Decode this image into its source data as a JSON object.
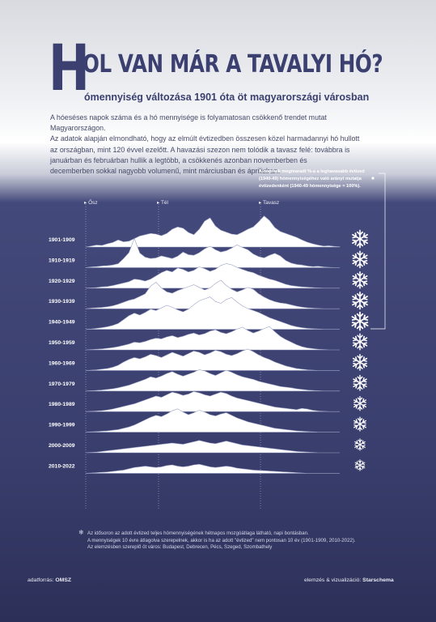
{
  "header": {
    "title_first_letter": "H",
    "title_rest": "OL VAN MÁR A TAVALYI HÓ?",
    "subtitle": "ómennyiség változása 1901 óta öt magyarországi városban"
  },
  "intro": [
    "A hóeséses napok száma és a hó mennyisége is folyamatosan csökkenő trendet mutat Magyarországon.",
    "Az adatok alapján elmondható, hogy az elmúlt évtizedben összesen közel harmadannyi hó hullott",
    "az országban, mint 120 évvel ezelőtt. A havazási szezon nem tolódik a tavasz felé: továbbra is",
    "januárban és februárban hullik a legtöbb, a csökkenés azonban novemberben és",
    "decemberben sokkal nagyobb volumenű, mint márciusban és áprilisban."
  ],
  "legend_note": {
    "lines": [
      "A hópihék megmaradt %-a a leghavasabb évtized",
      "(1940-49) hómennyiségéhez való arányt mutatja",
      "évtizedenként  (1940-49 hómennyisége = 100%)."
    ]
  },
  "footnote": {
    "lines": [
      "Az idősoron az adott évtized teljes hómennyiségének hétnapos mozgóátlaga látható, napi bontásban.",
      "A mennyiségek 10 évre átlagolva szerepelnek, akkor is ha az adott \"évtized\" nem pontosan 10 év (1901-1909, 2010-2022).",
      "Az elemzésben szereplő öt város: Budapest, Debrecen, Pécs, Szeged, Szombathely"
    ]
  },
  "credits": {
    "source_label": "adatforrás:",
    "source": "OMSZ",
    "author_label": "elemzés & vizualizáció:",
    "author": "Starschema"
  },
  "colors": {
    "background_dark": "#393e6d",
    "title": "#3b4070",
    "snow": "#ffffff",
    "text_light": "#e9eaf2"
  },
  "chart_data": {
    "type": "area",
    "description_note": "ridgeline of 7-day moving average daily snow amount per decade; season axis from autumn to spring",
    "season_markers": [
      "Ősz",
      "Tél",
      "Tavasz"
    ],
    "decades": [
      {
        "label": "1901-1909",
        "snow_share_of_max": 0.93,
        "profile": [
          0,
          0.03,
          0.06,
          0.05,
          0.1,
          0.14,
          0.22,
          0.16,
          0.18,
          0.26,
          0.34,
          0.38,
          0.42,
          0.4,
          0.35,
          0.42,
          0.55,
          0.62,
          0.58,
          0.45,
          0.38,
          0.55,
          0.8,
          0.9,
          0.65,
          0.52,
          0.46,
          0.4,
          0.38,
          0.46,
          0.55,
          0.62,
          0.78,
          0.96,
          0.82,
          0.6,
          0.48,
          0.42,
          0.36,
          0.3,
          0.22,
          0.15,
          0.1,
          0.06,
          0.03,
          0.04,
          0.02,
          0.01
        ]
      },
      {
        "label": "1910-1919",
        "snow_share_of_max": 0.86,
        "profile": [
          0,
          0.02,
          0.03,
          0.05,
          0.06,
          0.08,
          0.12,
          0.28,
          0.46,
          0.9,
          0.45,
          0.32,
          0.28,
          0.3,
          0.36,
          0.32,
          0.28,
          0.35,
          0.48,
          0.4,
          0.38,
          0.46,
          0.58,
          0.66,
          0.55,
          0.48,
          0.52,
          0.6,
          0.7,
          0.62,
          0.55,
          0.42,
          0.34,
          0.3,
          0.38,
          0.44,
          0.36,
          0.22,
          0.14,
          0.1,
          0.08,
          0.05,
          0.03,
          0.04,
          0.02,
          0.01,
          0,
          0
        ]
      },
      {
        "label": "1920-1929",
        "snow_share_of_max": 0.85,
        "profile": [
          0,
          0.01,
          0.02,
          0.04,
          0.05,
          0.08,
          0.12,
          0.16,
          0.2,
          0.28,
          0.26,
          0.22,
          0.28,
          0.38,
          0.48,
          0.55,
          0.5,
          0.62,
          0.58,
          0.5,
          0.55,
          0.66,
          0.6,
          0.52,
          0.58,
          0.7,
          0.76,
          0.72,
          0.64,
          0.58,
          0.52,
          0.48,
          0.4,
          0.34,
          0.28,
          0.24,
          0.18,
          0.12,
          0.08,
          0.06,
          0.04,
          0.03,
          0.02,
          0.01,
          0,
          0,
          0,
          0
        ]
      },
      {
        "label": "1930-1939",
        "snow_share_of_max": 0.9,
        "profile": [
          0,
          0.02,
          0.03,
          0.04,
          0.06,
          0.09,
          0.14,
          0.2,
          0.26,
          0.3,
          0.38,
          0.46,
          0.7,
          0.82,
          0.64,
          0.52,
          0.48,
          0.56,
          0.62,
          0.68,
          0.74,
          0.66,
          0.58,
          0.64,
          0.78,
          0.88,
          0.72,
          0.6,
          0.52,
          0.58,
          0.66,
          0.6,
          0.46,
          0.36,
          0.28,
          0.22,
          0.18,
          0.16,
          0.12,
          0.08,
          0.05,
          0.03,
          0.02,
          0.01,
          0,
          0,
          0,
          0
        ]
      },
      {
        "label": "1940-1949",
        "snow_share_of_max": 1.0,
        "profile": [
          0,
          0.01,
          0.03,
          0.05,
          0.08,
          0.12,
          0.18,
          0.3,
          0.42,
          0.5,
          0.44,
          0.52,
          0.62,
          0.58,
          0.66,
          0.74,
          0.68,
          0.6,
          0.54,
          0.62,
          0.76,
          0.88,
          0.94,
          1.0,
          0.86,
          0.8,
          0.92,
          0.98,
          0.84,
          0.72,
          0.64,
          0.58,
          0.52,
          0.44,
          0.36,
          0.3,
          0.24,
          0.18,
          0.12,
          0.08,
          0.05,
          0.03,
          0.02,
          0.01,
          0,
          0,
          0,
          0
        ]
      },
      {
        "label": "1950-1959",
        "snow_share_of_max": 0.8,
        "profile": [
          0,
          0.01,
          0.02,
          0.03,
          0.05,
          0.07,
          0.1,
          0.14,
          0.18,
          0.24,
          0.22,
          0.26,
          0.32,
          0.36,
          0.34,
          0.4,
          0.44,
          0.38,
          0.42,
          0.48,
          0.52,
          0.46,
          0.5,
          0.58,
          0.62,
          0.54,
          0.5,
          0.56,
          0.64,
          0.7,
          0.6,
          0.52,
          0.58,
          0.66,
          0.72,
          0.56,
          0.42,
          0.32,
          0.24,
          0.16,
          0.1,
          0.06,
          0.04,
          0.02,
          0.01,
          0,
          0,
          0
        ]
      },
      {
        "label": "1960-1969",
        "snow_share_of_max": 0.78,
        "profile": [
          0,
          0.01,
          0.02,
          0.04,
          0.06,
          0.1,
          0.16,
          0.26,
          0.34,
          0.4,
          0.36,
          0.42,
          0.5,
          0.46,
          0.4,
          0.48,
          0.56,
          0.5,
          0.44,
          0.52,
          0.6,
          0.56,
          0.48,
          0.54,
          0.62,
          0.58,
          0.5,
          0.46,
          0.52,
          0.6,
          0.66,
          0.58,
          0.48,
          0.4,
          0.34,
          0.26,
          0.2,
          0.14,
          0.1,
          0.06,
          0.04,
          0.02,
          0.01,
          0,
          0,
          0,
          0,
          0
        ]
      },
      {
        "label": "1970-1979",
        "snow_share_of_max": 0.72,
        "profile": [
          0,
          0.01,
          0.02,
          0.03,
          0.05,
          0.07,
          0.1,
          0.14,
          0.18,
          0.24,
          0.3,
          0.36,
          0.44,
          0.4,
          0.46,
          0.54,
          0.6,
          0.52,
          0.46,
          0.52,
          0.58,
          0.66,
          0.62,
          0.54,
          0.48,
          0.56,
          0.64,
          0.58,
          0.5,
          0.44,
          0.4,
          0.36,
          0.3,
          0.26,
          0.22,
          0.18,
          0.14,
          0.12,
          0.1,
          0.07,
          0.05,
          0.03,
          0.02,
          0.01,
          0,
          0,
          0,
          0
        ]
      },
      {
        "label": "1980-1989",
        "snow_share_of_max": 0.62,
        "profile": [
          0,
          0.01,
          0.02,
          0.03,
          0.05,
          0.08,
          0.12,
          0.16,
          0.2,
          0.24,
          0.3,
          0.36,
          0.42,
          0.48,
          0.44,
          0.52,
          0.6,
          0.56,
          0.5,
          0.54,
          0.62,
          0.58,
          0.52,
          0.48,
          0.54,
          0.6,
          0.56,
          0.48,
          0.42,
          0.38,
          0.34,
          0.3,
          0.26,
          0.22,
          0.18,
          0.14,
          0.12,
          0.1,
          0.08,
          0.06,
          0.1,
          0.08,
          0.04,
          0.02,
          0.01,
          0,
          0,
          0
        ]
      },
      {
        "label": "1990-1999",
        "snow_share_of_max": 0.6,
        "profile": [
          0,
          0.01,
          0.02,
          0.03,
          0.04,
          0.06,
          0.08,
          0.12,
          0.16,
          0.22,
          0.3,
          0.38,
          0.46,
          0.52,
          0.48,
          0.56,
          0.66,
          0.72,
          0.62,
          0.54,
          0.6,
          0.68,
          0.62,
          0.54,
          0.5,
          0.56,
          0.6,
          0.52,
          0.44,
          0.38,
          0.32,
          0.28,
          0.24,
          0.2,
          0.16,
          0.12,
          0.1,
          0.08,
          0.06,
          0.04,
          0.03,
          0.02,
          0.01,
          0,
          0,
          0,
          0,
          0
        ]
      },
      {
        "label": "2000-2009",
        "snow_share_of_max": 0.4,
        "profile": [
          0,
          0.01,
          0.02,
          0.04,
          0.06,
          0.08,
          0.1,
          0.12,
          0.14,
          0.16,
          0.18,
          0.2,
          0.22,
          0.24,
          0.26,
          0.28,
          0.3,
          0.28,
          0.26,
          0.3,
          0.34,
          0.38,
          0.34,
          0.3,
          0.28,
          0.32,
          0.36,
          0.32,
          0.28,
          0.24,
          0.22,
          0.2,
          0.18,
          0.16,
          0.14,
          0.12,
          0.1,
          0.08,
          0.06,
          0.04,
          0.03,
          0.02,
          0.01,
          0,
          0,
          0,
          0,
          0
        ]
      },
      {
        "label": "2010-2022",
        "snow_share_of_max": 0.34,
        "profile": [
          0,
          0.01,
          0.02,
          0.03,
          0.04,
          0.06,
          0.08,
          0.1,
          0.14,
          0.18,
          0.2,
          0.22,
          0.2,
          0.18,
          0.2,
          0.24,
          0.26,
          0.22,
          0.2,
          0.22,
          0.26,
          0.28,
          0.24,
          0.2,
          0.18,
          0.2,
          0.22,
          0.2,
          0.16,
          0.14,
          0.12,
          0.1,
          0.09,
          0.08,
          0.07,
          0.06,
          0.05,
          0.04,
          0.03,
          0.02,
          0.01,
          0,
          0,
          0,
          0,
          0,
          0,
          0
        ]
      }
    ]
  }
}
